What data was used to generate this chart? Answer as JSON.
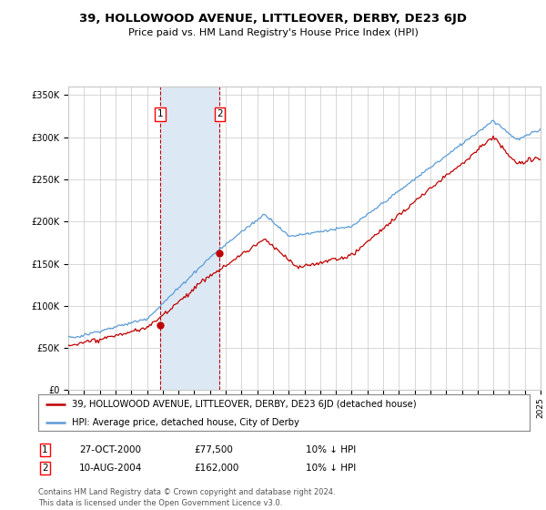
{
  "title": "39, HOLLOWOOD AVENUE, LITTLEOVER, DERBY, DE23 6JD",
  "subtitle": "Price paid vs. HM Land Registry's House Price Index (HPI)",
  "legend_line1": "39, HOLLOWOOD AVENUE, LITTLEOVER, DERBY, DE23 6JD (detached house)",
  "legend_line2": "HPI: Average price, detached house, City of Derby",
  "transaction1_date": "27-OCT-2000",
  "transaction1_price": "£77,500",
  "transaction1_hpi": "10% ↓ HPI",
  "transaction2_date": "10-AUG-2004",
  "transaction2_price": "£162,000",
  "transaction2_hpi": "10% ↓ HPI",
  "copyright": "Contains HM Land Registry data © Crown copyright and database right 2024.\nThis data is licensed under the Open Government Licence v3.0.",
  "hpi_color": "#5b9bd5",
  "price_color": "#c00000",
  "shade_color": "#dce9f5",
  "vline_color": "#c00000",
  "background_color": "#ffffff",
  "grid_color": "#c8c8c8",
  "ylim": [
    0,
    360000
  ],
  "yticks": [
    0,
    50000,
    100000,
    150000,
    200000,
    250000,
    300000,
    350000
  ],
  "year_start": 1995,
  "year_end": 2025,
  "transaction1_year": 2000.83,
  "transaction2_year": 2004.62,
  "transaction1_price_val": 77500,
  "transaction2_price_val": 162000
}
